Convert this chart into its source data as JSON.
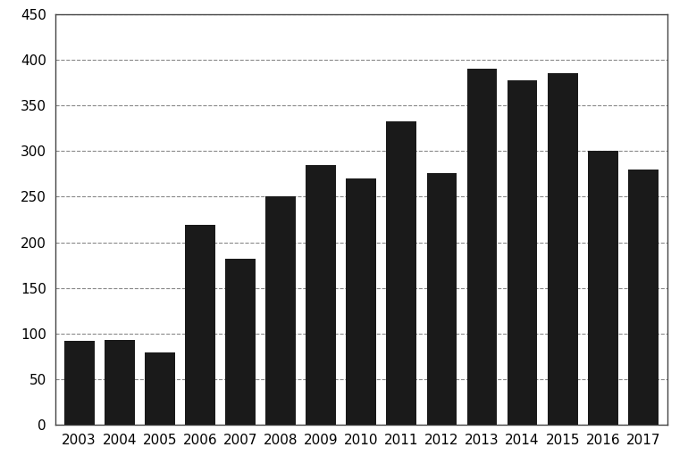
{
  "years": [
    2003,
    2004,
    2005,
    2006,
    2007,
    2008,
    2009,
    2010,
    2011,
    2012,
    2013,
    2014,
    2015,
    2016,
    2017
  ],
  "values": [
    92,
    93,
    79,
    219,
    182,
    250,
    285,
    270,
    333,
    276,
    390,
    378,
    385,
    300,
    280
  ],
  "bar_color": "#1a1a1a",
  "ylim": [
    0,
    450
  ],
  "yticks": [
    0,
    50,
    100,
    150,
    200,
    250,
    300,
    350,
    400,
    450
  ],
  "background_color": "#ffffff",
  "grid_color": "#888888",
  "bar_width": 0.75,
  "tick_fontsize": 11,
  "spine_color": "#444444"
}
